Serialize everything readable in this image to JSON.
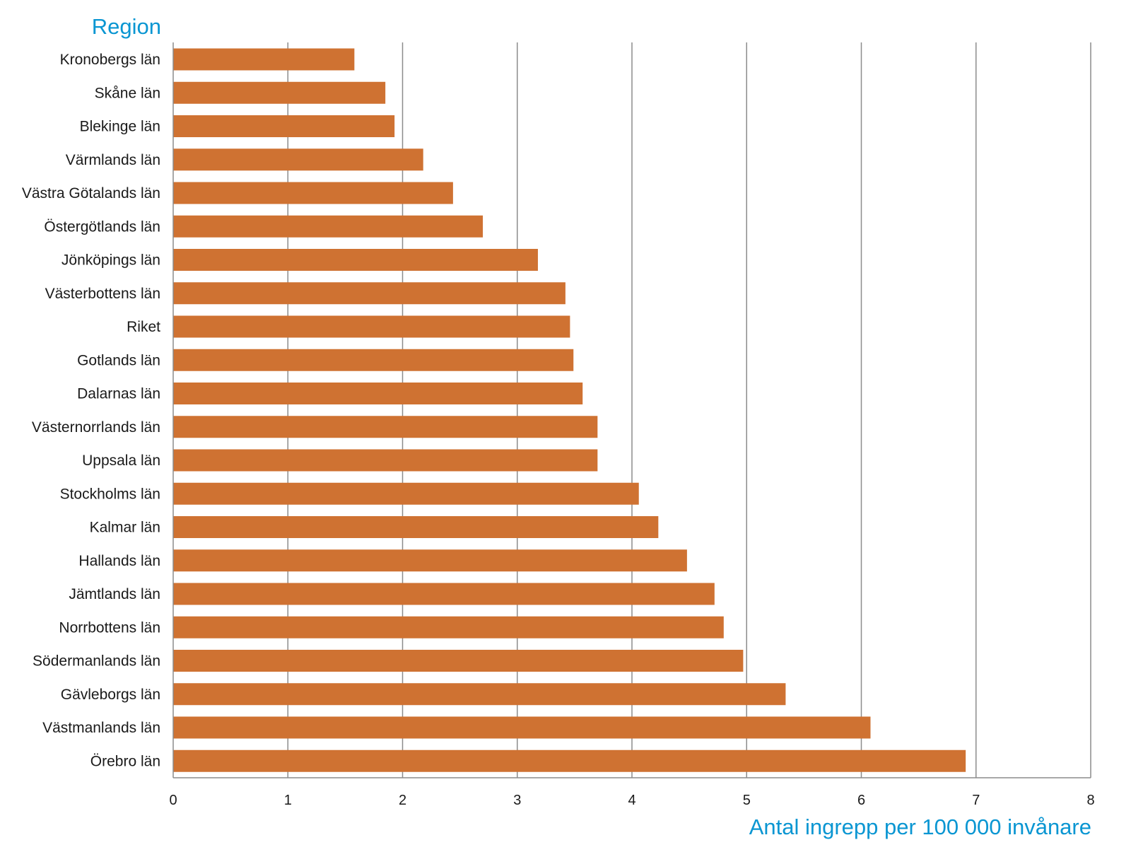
{
  "chart_data": {
    "type": "bar",
    "orientation": "horizontal",
    "ylabel": "Region",
    "xlabel": "Antal ingrepp per 100 000 invånare",
    "categories": [
      "Kronobergs län",
      "Skåne län",
      "Blekinge län",
      "Värmlands län",
      "Västra Götalands län",
      "Östergötlands län",
      "Jönköpings län",
      "Västerbottens län",
      "Riket",
      "Gotlands län",
      "Dalarnas län",
      "Västernorrlands län",
      "Uppsala län",
      "Stockholms län",
      "Kalmar län",
      "Hallands län",
      "Jämtlands län",
      "Norrbottens län",
      "Södermanlands län",
      "Gävleborgs län",
      "Västmanlands län",
      "Örebro län"
    ],
    "values": [
      1.58,
      1.85,
      1.93,
      2.18,
      2.44,
      2.7,
      3.18,
      3.42,
      3.46,
      3.49,
      3.57,
      3.7,
      3.7,
      4.06,
      4.23,
      4.48,
      4.72,
      4.8,
      4.97,
      5.34,
      6.08,
      6.91
    ],
    "xlim": [
      0,
      8
    ],
    "xticks": [
      "0",
      "1",
      "2",
      "3",
      "4",
      "5",
      "6",
      "7",
      "8"
    ],
    "grid": "vertical",
    "bar_color": "#cf7232",
    "title_color": "#0a96d2",
    "grid_color": "#8c8c8c"
  }
}
